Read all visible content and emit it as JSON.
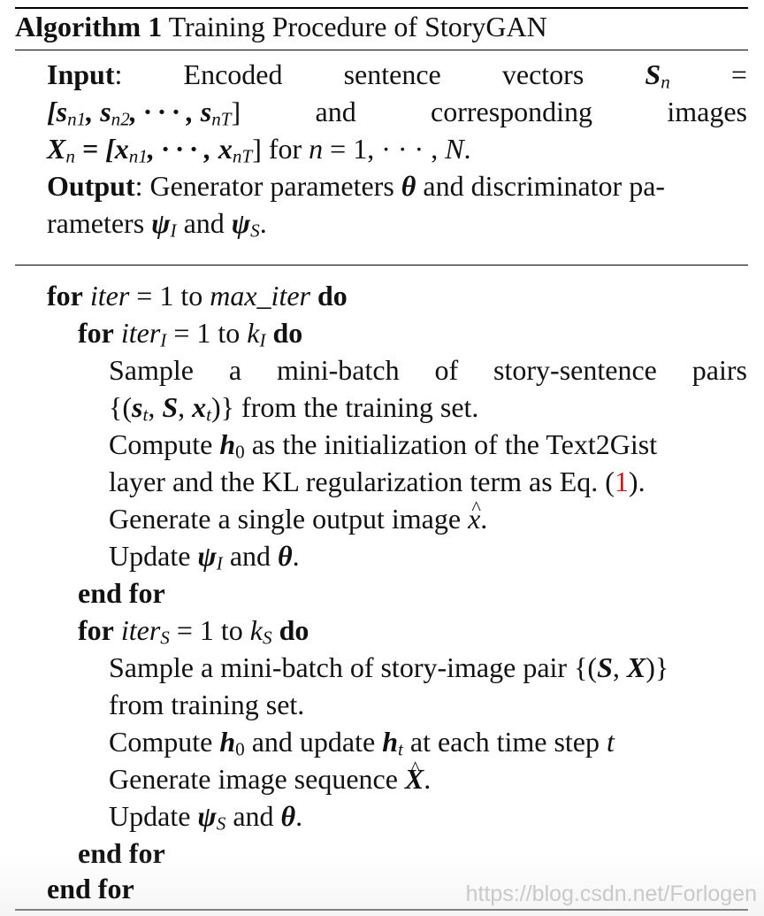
{
  "header": {
    "label": "Algorithm 1",
    "title": "Training Procedure of StoryGAN"
  },
  "input": {
    "label": "Input",
    "line1": [
      "Encoded",
      "sentence",
      "vectors",
      "S",
      "n",
      "="
    ],
    "line2": [
      "[s",
      "n1",
      ", s",
      "n2",
      ", · · · , s",
      "nT",
      "]",
      "and",
      "corresponding",
      "images"
    ],
    "line3": [
      "X",
      "n",
      " = [x",
      "n1",
      ", · · · , x",
      "nT",
      "] for ",
      "n",
      " = 1, · · · , ",
      "N",
      "."
    ]
  },
  "output": {
    "label": "Output",
    "line1": [
      ": Generator parameters ",
      "θ",
      " and discriminator pa-"
    ],
    "line2": [
      "rameters ",
      "ψ",
      "I",
      " and ",
      "ψ",
      "S",
      "."
    ]
  },
  "body": {
    "outer_for": [
      "for",
      "iter",
      " = 1 to ",
      "max_iter",
      "do"
    ],
    "inner_for_I": [
      "for",
      "iter",
      "I",
      " = 1 to ",
      "k",
      "I",
      "do"
    ],
    "sample_I_l1": [
      "Sample",
      "a",
      "mini-batch",
      "of",
      "story-sentence",
      "pairs"
    ],
    "sample_I_l2": [
      "{(",
      "s",
      "t",
      ", ",
      "S",
      ", ",
      "x",
      "t",
      ")} from the training set."
    ],
    "compute_I_l1": [
      "Compute ",
      "h",
      "0",
      " as the initialization of the Text2Gist"
    ],
    "compute_I_l2": [
      "layer and the KL regularization term as Eq. (",
      "1",
      ")."
    ],
    "generate_I": [
      "Generate a single output image ",
      "x",
      "."
    ],
    "update_I": [
      "Update ",
      "ψ",
      "I",
      " and ",
      "θ",
      "."
    ],
    "end_for": "end for",
    "inner_for_S": [
      "for",
      "iter",
      "S",
      " = 1 to ",
      "k",
      "S",
      "do"
    ],
    "sample_S_l1": [
      "Sample a mini-batch of story-image pair {(",
      "S",
      ", ",
      "X",
      ")}"
    ],
    "sample_S_l2": "from training set.",
    "compute_S": [
      "Compute ",
      "h",
      "0",
      " and update ",
      "h",
      "t",
      " at each time step ",
      "t"
    ],
    "generate_S": [
      "Generate image sequence ",
      "X",
      "."
    ],
    "update_S": [
      "Update ",
      "ψ",
      "S",
      " and ",
      "θ",
      "."
    ]
  },
  "watermark": "https://blog.csdn.net/Forlogen"
}
